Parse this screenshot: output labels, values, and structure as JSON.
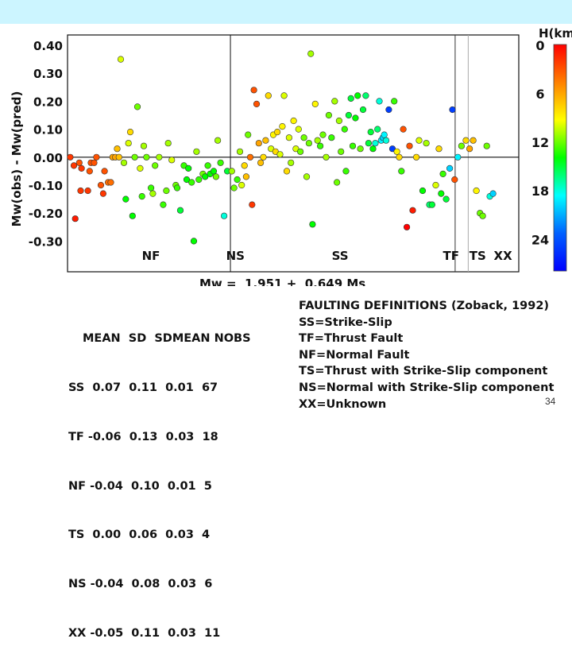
{
  "chart_data": {
    "type": "scatter",
    "ylabel": "Mw(obs) - Mw(pred)",
    "ylim": [
      -0.33,
      0.42
    ],
    "yticks": [
      "0.40",
      "0.30",
      "0.20",
      "0.10",
      "0.00",
      "-0.10",
      "-0.20",
      "-0.30"
    ],
    "ytick_values": [
      0.4,
      0.3,
      0.2,
      0.1,
      0.0,
      -0.1,
      -0.2,
      -0.3
    ],
    "grid": false,
    "x_categories": [
      "NF",
      "NS",
      "SS",
      "TF",
      "TS",
      "XX"
    ],
    "x_range": [
      0,
      100
    ],
    "category_separators": [
      36.1,
      85.9,
      88.8
    ],
    "color_scale": {
      "title": "H(km)",
      "min": 0,
      "max": 28,
      "ticks": [
        "0",
        "6",
        "12",
        "18",
        "24"
      ],
      "tick_values": [
        0,
        6,
        12,
        18,
        24
      ],
      "stops": [
        "#ff0000",
        "#ff8000",
        "#ffff00",
        "#00ff00",
        "#00ffff",
        "#0060ff",
        "#0000ff"
      ]
    },
    "points": [
      {
        "x": 0.6,
        "y": 0.0,
        "h": 2
      },
      {
        "x": 1.4,
        "y": -0.03,
        "h": 2
      },
      {
        "x": 1.7,
        "y": -0.22,
        "h": 1
      },
      {
        "x": 2.6,
        "y": -0.02,
        "h": 3
      },
      {
        "x": 2.9,
        "y": -0.12,
        "h": 2
      },
      {
        "x": 3.1,
        "y": -0.04,
        "h": 2
      },
      {
        "x": 4.5,
        "y": -0.12,
        "h": 2
      },
      {
        "x": 4.9,
        "y": -0.05,
        "h": 3
      },
      {
        "x": 5.2,
        "y": -0.02,
        "h": 3
      },
      {
        "x": 5.9,
        "y": -0.02,
        "h": 3
      },
      {
        "x": 6.4,
        "y": 0.0,
        "h": 3
      },
      {
        "x": 7.4,
        "y": -0.1,
        "h": 3
      },
      {
        "x": 7.9,
        "y": -0.13,
        "h": 2
      },
      {
        "x": 8.2,
        "y": -0.05,
        "h": 3
      },
      {
        "x": 9.0,
        "y": -0.09,
        "h": 4
      },
      {
        "x": 9.6,
        "y": -0.09,
        "h": 4
      },
      {
        "x": 10.0,
        "y": 0.0,
        "h": 6
      },
      {
        "x": 10.6,
        "y": 0.0,
        "h": 6
      },
      {
        "x": 11.0,
        "y": 0.03,
        "h": 7
      },
      {
        "x": 11.4,
        "y": 0.0,
        "h": 7
      },
      {
        "x": 11.8,
        "y": 0.35,
        "h": 10
      },
      {
        "x": 12.5,
        "y": -0.02,
        "h": 11
      },
      {
        "x": 12.9,
        "y": -0.15,
        "h": 14
      },
      {
        "x": 13.5,
        "y": 0.05,
        "h": 10
      },
      {
        "x": 13.9,
        "y": 0.09,
        "h": 8
      },
      {
        "x": 14.4,
        "y": -0.21,
        "h": 14
      },
      {
        "x": 14.9,
        "y": 0.0,
        "h": 12
      },
      {
        "x": 15.5,
        "y": 0.18,
        "h": 12
      },
      {
        "x": 16.1,
        "y": -0.04,
        "h": 10
      },
      {
        "x": 16.5,
        "y": -0.14,
        "h": 13
      },
      {
        "x": 16.9,
        "y": 0.04,
        "h": 11
      },
      {
        "x": 17.5,
        "y": 0.0,
        "h": 12
      },
      {
        "x": 18.5,
        "y": -0.11,
        "h": 13
      },
      {
        "x": 18.9,
        "y": -0.13,
        "h": 11
      },
      {
        "x": 19.4,
        "y": -0.03,
        "h": 12
      },
      {
        "x": 20.3,
        "y": 0.0,
        "h": 11
      },
      {
        "x": 21.2,
        "y": -0.17,
        "h": 13
      },
      {
        "x": 21.9,
        "y": -0.12,
        "h": 12
      },
      {
        "x": 22.3,
        "y": 0.05,
        "h": 11
      },
      {
        "x": 23.1,
        "y": -0.01,
        "h": 10
      },
      {
        "x": 24.0,
        "y": -0.1,
        "h": 12
      },
      {
        "x": 24.3,
        "y": -0.11,
        "h": 13
      },
      {
        "x": 25.0,
        "y": -0.19,
        "h": 15
      },
      {
        "x": 25.8,
        "y": -0.03,
        "h": 13
      },
      {
        "x": 26.4,
        "y": -0.08,
        "h": 14
      },
      {
        "x": 26.8,
        "y": -0.04,
        "h": 14
      },
      {
        "x": 27.5,
        "y": -0.09,
        "h": 13
      },
      {
        "x": 28.0,
        "y": -0.3,
        "h": 14
      },
      {
        "x": 28.6,
        "y": 0.02,
        "h": 11
      },
      {
        "x": 29.1,
        "y": -0.08,
        "h": 13
      },
      {
        "x": 30.0,
        "y": -0.06,
        "h": 12
      },
      {
        "x": 30.5,
        "y": -0.07,
        "h": 14
      },
      {
        "x": 31.1,
        "y": -0.03,
        "h": 13
      },
      {
        "x": 31.6,
        "y": -0.06,
        "h": 14
      },
      {
        "x": 32.4,
        "y": -0.05,
        "h": 14
      },
      {
        "x": 32.9,
        "y": -0.07,
        "h": 12
      },
      {
        "x": 33.3,
        "y": 0.06,
        "h": 11
      },
      {
        "x": 33.9,
        "y": -0.02,
        "h": 13
      },
      {
        "x": 34.7,
        "y": -0.21,
        "h": 18
      },
      {
        "x": 35.4,
        "y": -0.05,
        "h": 15
      },
      {
        "x": 36.4,
        "y": -0.05,
        "h": 11
      },
      {
        "x": 36.9,
        "y": -0.11,
        "h": 12
      },
      {
        "x": 37.6,
        "y": -0.08,
        "h": 13
      },
      {
        "x": 38.2,
        "y": 0.02,
        "h": 11
      },
      {
        "x": 38.6,
        "y": -0.1,
        "h": 10
      },
      {
        "x": 39.2,
        "y": -0.03,
        "h": 8
      },
      {
        "x": 39.6,
        "y": -0.07,
        "h": 7
      },
      {
        "x": 40.0,
        "y": 0.08,
        "h": 12
      },
      {
        "x": 40.5,
        "y": 0.0,
        "h": 4
      },
      {
        "x": 40.9,
        "y": -0.17,
        "h": 2
      },
      {
        "x": 41.3,
        "y": 0.24,
        "h": 3
      },
      {
        "x": 41.9,
        "y": 0.19,
        "h": 3
      },
      {
        "x": 42.4,
        "y": 0.05,
        "h": 6
      },
      {
        "x": 42.8,
        "y": -0.02,
        "h": 7
      },
      {
        "x": 43.4,
        "y": 0.0,
        "h": 8
      },
      {
        "x": 43.9,
        "y": 0.06,
        "h": 7
      },
      {
        "x": 44.5,
        "y": 0.22,
        "h": 8
      },
      {
        "x": 45.1,
        "y": 0.03,
        "h": 10
      },
      {
        "x": 45.6,
        "y": 0.08,
        "h": 9
      },
      {
        "x": 46.1,
        "y": 0.02,
        "h": 8
      },
      {
        "x": 46.5,
        "y": 0.09,
        "h": 8
      },
      {
        "x": 47.1,
        "y": 0.01,
        "h": 10
      },
      {
        "x": 47.6,
        "y": 0.11,
        "h": 9
      },
      {
        "x": 48.0,
        "y": 0.22,
        "h": 10
      },
      {
        "x": 48.6,
        "y": -0.05,
        "h": 8
      },
      {
        "x": 49.1,
        "y": 0.07,
        "h": 10
      },
      {
        "x": 49.5,
        "y": -0.02,
        "h": 11
      },
      {
        "x": 50.1,
        "y": 0.13,
        "h": 9
      },
      {
        "x": 50.6,
        "y": 0.03,
        "h": 10
      },
      {
        "x": 51.2,
        "y": 0.1,
        "h": 10
      },
      {
        "x": 51.6,
        "y": 0.02,
        "h": 12
      },
      {
        "x": 52.4,
        "y": 0.07,
        "h": 12
      },
      {
        "x": 53.0,
        "y": -0.07,
        "h": 11
      },
      {
        "x": 53.5,
        "y": 0.05,
        "h": 12
      },
      {
        "x": 53.9,
        "y": 0.37,
        "h": 11
      },
      {
        "x": 54.3,
        "y": -0.24,
        "h": 14
      },
      {
        "x": 54.9,
        "y": 0.19,
        "h": 9
      },
      {
        "x": 55.4,
        "y": 0.06,
        "h": 11
      },
      {
        "x": 56.0,
        "y": 0.04,
        "h": 13
      },
      {
        "x": 56.6,
        "y": 0.08,
        "h": 12
      },
      {
        "x": 57.3,
        "y": 0.0,
        "h": 11
      },
      {
        "x": 57.9,
        "y": 0.15,
        "h": 12
      },
      {
        "x": 58.5,
        "y": 0.07,
        "h": 13
      },
      {
        "x": 59.2,
        "y": 0.2,
        "h": 11
      },
      {
        "x": 59.7,
        "y": -0.09,
        "h": 12
      },
      {
        "x": 60.2,
        "y": 0.13,
        "h": 11
      },
      {
        "x": 60.6,
        "y": 0.02,
        "h": 12
      },
      {
        "x": 61.4,
        "y": 0.1,
        "h": 13
      },
      {
        "x": 61.7,
        "y": -0.05,
        "h": 13
      },
      {
        "x": 62.3,
        "y": 0.15,
        "h": 15
      },
      {
        "x": 62.8,
        "y": 0.21,
        "h": 15
      },
      {
        "x": 63.2,
        "y": 0.04,
        "h": 13
      },
      {
        "x": 63.8,
        "y": 0.14,
        "h": 14
      },
      {
        "x": 64.3,
        "y": 0.22,
        "h": 14
      },
      {
        "x": 64.9,
        "y": 0.03,
        "h": 12
      },
      {
        "x": 65.5,
        "y": 0.17,
        "h": 15
      },
      {
        "x": 66.1,
        "y": 0.22,
        "h": 16
      },
      {
        "x": 66.7,
        "y": 0.05,
        "h": 15
      },
      {
        "x": 67.2,
        "y": 0.09,
        "h": 15
      },
      {
        "x": 67.7,
        "y": 0.03,
        "h": 14
      },
      {
        "x": 68.2,
        "y": 0.05,
        "h": 18
      },
      {
        "x": 68.7,
        "y": 0.1,
        "h": 16
      },
      {
        "x": 69.1,
        "y": 0.2,
        "h": 18
      },
      {
        "x": 69.5,
        "y": 0.06,
        "h": 19
      },
      {
        "x": 69.9,
        "y": 0.07,
        "h": 20
      },
      {
        "x": 70.2,
        "y": 0.08,
        "h": 19
      },
      {
        "x": 70.6,
        "y": 0.06,
        "h": 18
      },
      {
        "x": 71.2,
        "y": 0.17,
        "h": 25
      },
      {
        "x": 72.0,
        "y": 0.03,
        "h": 25
      },
      {
        "x": 72.4,
        "y": 0.2,
        "h": 13
      },
      {
        "x": 73.0,
        "y": 0.02,
        "h": 9
      },
      {
        "x": 73.5,
        "y": 0.0,
        "h": 8
      },
      {
        "x": 74.0,
        "y": -0.05,
        "h": 13
      },
      {
        "x": 74.4,
        "y": 0.1,
        "h": 3
      },
      {
        "x": 75.2,
        "y": -0.25,
        "h": 0
      },
      {
        "x": 75.8,
        "y": 0.04,
        "h": 3
      },
      {
        "x": 76.5,
        "y": -0.19,
        "h": 1
      },
      {
        "x": 77.3,
        "y": 0.0,
        "h": 8
      },
      {
        "x": 77.9,
        "y": 0.06,
        "h": 10
      },
      {
        "x": 78.7,
        "y": -0.12,
        "h": 14
      },
      {
        "x": 79.5,
        "y": 0.05,
        "h": 11
      },
      {
        "x": 80.2,
        "y": -0.17,
        "h": 16
      },
      {
        "x": 80.8,
        "y": -0.17,
        "h": 15
      },
      {
        "x": 81.6,
        "y": -0.1,
        "h": 10
      },
      {
        "x": 82.3,
        "y": 0.03,
        "h": 8
      },
      {
        "x": 82.8,
        "y": -0.13,
        "h": 14
      },
      {
        "x": 83.2,
        "y": -0.06,
        "h": 13
      },
      {
        "x": 83.9,
        "y": -0.15,
        "h": 15
      },
      {
        "x": 84.7,
        "y": -0.04,
        "h": 20
      },
      {
        "x": 85.3,
        "y": 0.17,
        "h": 25
      },
      {
        "x": 85.8,
        "y": -0.08,
        "h": 3
      },
      {
        "x": 86.5,
        "y": 0.0,
        "h": 19
      },
      {
        "x": 87.3,
        "y": 0.04,
        "h": 12
      },
      {
        "x": 88.3,
        "y": 0.06,
        "h": 8
      },
      {
        "x": 89.1,
        "y": 0.03,
        "h": 6
      },
      {
        "x": 89.9,
        "y": 0.06,
        "h": 7
      },
      {
        "x": 90.6,
        "y": -0.12,
        "h": 9
      },
      {
        "x": 91.4,
        "y": -0.2,
        "h": 12
      },
      {
        "x": 92.0,
        "y": -0.21,
        "h": 12
      },
      {
        "x": 92.9,
        "y": 0.04,
        "h": 12
      },
      {
        "x": 93.6,
        "y": -0.14,
        "h": 18
      },
      {
        "x": 94.3,
        "y": -0.13,
        "h": 20
      }
    ]
  },
  "x_axis_label": "Mw =  1.951 +  0.649 Ms",
  "stats_table": {
    "header": "MEAN  SD  SDMEAN NOBS",
    "rows": [
      "SS  0.07  0.11  0.01  67",
      "TF -0.06  0.13  0.03  18",
      "NF -0.04  0.10  0.01  5",
      "TS  0.00  0.06  0.03  4",
      "NS -0.04  0.08  0.03  6",
      "XX -0.05  0.11  0.03  11"
    ]
  },
  "definitions": {
    "title": "FAULTING DEFINITIONS (Zoback, 1992)",
    "items": [
      "SS=Strike-Slip",
      "TF=Thrust Fault",
      "NF=Normal Fault",
      "TS=Thrust with Strike-Slip component",
      "NS=Normal with Strike-Slip component",
      "XX=Unknown"
    ]
  },
  "page_number": "34",
  "colors": {
    "top_band": "#ccf5ff",
    "axis": "#111111",
    "grid_divider": "#999999"
  }
}
